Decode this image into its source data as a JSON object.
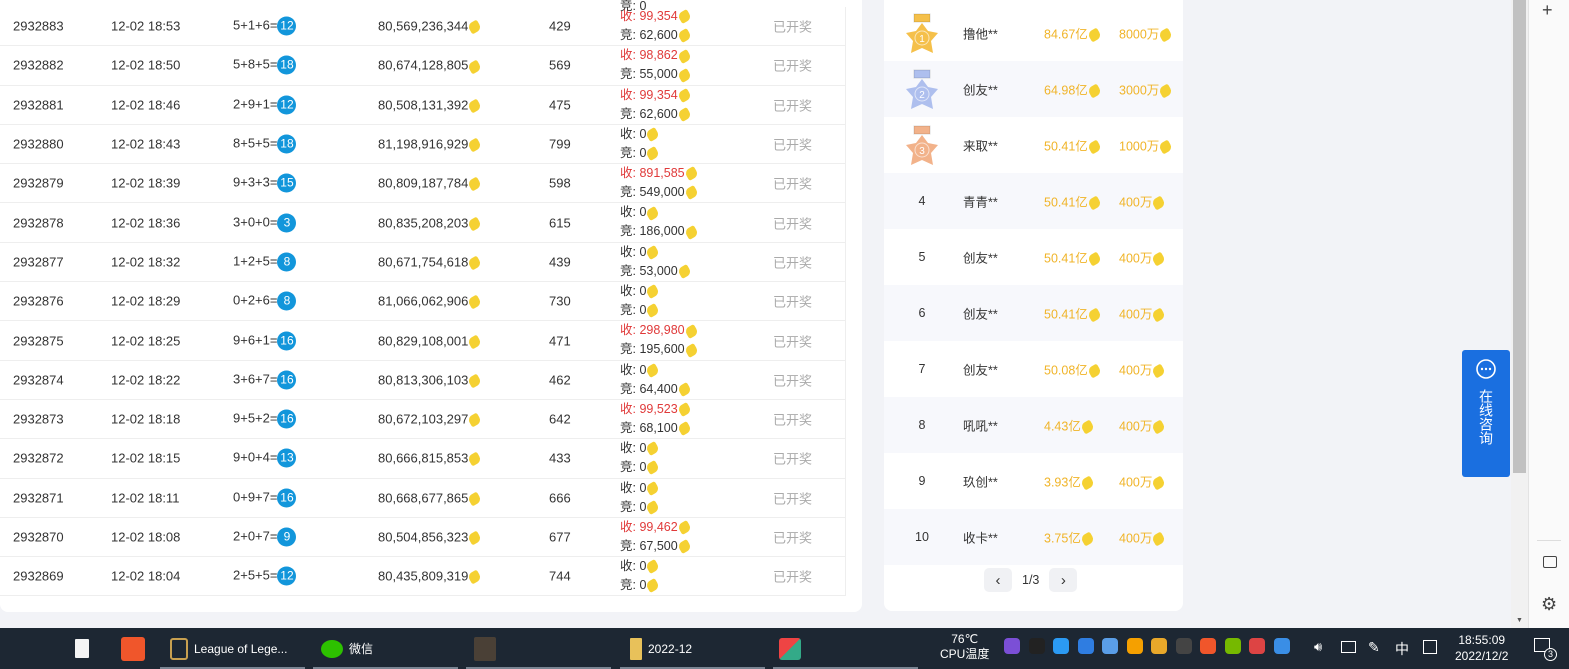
{
  "table": {
    "top_partial": "竞: 0",
    "status_label": "已开奖",
    "recv_prefix": "收: ",
    "bid_prefix": "竞: ",
    "rows": [
      {
        "id": "2932883",
        "time": "12-02 18:53",
        "formula": "5+1+6=",
        "result": "12",
        "total": "80,569,236,344",
        "count": "429",
        "recv": "99,354",
        "bid": "62,600"
      },
      {
        "id": "2932882",
        "time": "12-02 18:50",
        "formula": "5+8+5=",
        "result": "18",
        "total": "80,674,128,805",
        "count": "569",
        "recv": "98,862",
        "bid": "55,000"
      },
      {
        "id": "2932881",
        "time": "12-02 18:46",
        "formula": "2+9+1=",
        "result": "12",
        "total": "80,508,131,392",
        "count": "475",
        "recv": "99,354",
        "bid": "62,600"
      },
      {
        "id": "2932880",
        "time": "12-02 18:43",
        "formula": "8+5+5=",
        "result": "18",
        "total": "81,198,916,929",
        "count": "799",
        "recv": "0",
        "bid": "0"
      },
      {
        "id": "2932879",
        "time": "12-02 18:39",
        "formula": "9+3+3=",
        "result": "15",
        "total": "80,809,187,784",
        "count": "598",
        "recv": "891,585",
        "bid": "549,000"
      },
      {
        "id": "2932878",
        "time": "12-02 18:36",
        "formula": "3+0+0=",
        "result": "3",
        "total": "80,835,208,203",
        "count": "615",
        "recv": "0",
        "bid": "186,000"
      },
      {
        "id": "2932877",
        "time": "12-02 18:32",
        "formula": "1+2+5=",
        "result": "8",
        "total": "80,671,754,618",
        "count": "439",
        "recv": "0",
        "bid": "53,000"
      },
      {
        "id": "2932876",
        "time": "12-02 18:29",
        "formula": "0+2+6=",
        "result": "8",
        "total": "81,066,062,906",
        "count": "730",
        "recv": "0",
        "bid": "0"
      },
      {
        "id": "2932875",
        "time": "12-02 18:25",
        "formula": "9+6+1=",
        "result": "16",
        "total": "80,829,108,001",
        "count": "471",
        "recv": "298,980",
        "bid": "195,600"
      },
      {
        "id": "2932874",
        "time": "12-02 18:22",
        "formula": "3+6+7=",
        "result": "16",
        "total": "80,813,306,103",
        "count": "462",
        "recv": "0",
        "bid": "64,400"
      },
      {
        "id": "2932873",
        "time": "12-02 18:18",
        "formula": "9+5+2=",
        "result": "16",
        "total": "80,672,103,297",
        "count": "642",
        "recv": "99,523",
        "bid": "68,100"
      },
      {
        "id": "2932872",
        "time": "12-02 18:15",
        "formula": "9+0+4=",
        "result": "13",
        "total": "80,666,815,853",
        "count": "433",
        "recv": "0",
        "bid": "0"
      },
      {
        "id": "2932871",
        "time": "12-02 18:11",
        "formula": "0+9+7=",
        "result": "16",
        "total": "80,668,677,865",
        "count": "666",
        "recv": "0",
        "bid": "0"
      },
      {
        "id": "2932870",
        "time": "12-02 18:08",
        "formula": "2+0+7=",
        "result": "9",
        "total": "80,504,856,323",
        "count": "677",
        "recv": "99,462",
        "bid": "67,500"
      },
      {
        "id": "2932869",
        "time": "12-02 18:04",
        "formula": "2+5+5=",
        "result": "12",
        "total": "80,435,809,319",
        "count": "744",
        "recv": "0",
        "bid": "0"
      }
    ]
  },
  "ranking": {
    "rows": [
      {
        "rank": "1",
        "name": "撸他**",
        "amount": "84.67亿",
        "prize": "8000万"
      },
      {
        "rank": "2",
        "name": "创友**",
        "amount": "64.98亿",
        "prize": "3000万"
      },
      {
        "rank": "3",
        "name": "来取**",
        "amount": "50.41亿",
        "prize": "1000万"
      },
      {
        "rank": "4",
        "name": "青青**",
        "amount": "50.41亿",
        "prize": "400万"
      },
      {
        "rank": "5",
        "name": "创友**",
        "amount": "50.41亿",
        "prize": "400万"
      },
      {
        "rank": "6",
        "name": "创友**",
        "amount": "50.41亿",
        "prize": "400万"
      },
      {
        "rank": "7",
        "name": "创友**",
        "amount": "50.08亿",
        "prize": "400万"
      },
      {
        "rank": "8",
        "name": "吼吼**",
        "amount": "4.43亿",
        "prize": "400万"
      },
      {
        "rank": "9",
        "name": "玖创**",
        "amount": "3.93亿",
        "prize": "400万"
      },
      {
        "rank": "10",
        "name": "收卡**",
        "amount": "3.75亿",
        "prize": "400万"
      }
    ],
    "page": "1/3",
    "medal_colors": [
      "#f5c04a",
      "#aebfee",
      "#f2b28a"
    ]
  },
  "consult": {
    "label": "在线咨询"
  },
  "taskbar": {
    "apps": [
      "League of Lege...",
      "微信",
      "2022-12"
    ],
    "temp": "76℃",
    "temp_label": "CPU温度",
    "ime": "中",
    "time": "18:55:09",
    "date": "2022/12/2",
    "notif_count": "3"
  },
  "colors": {
    "accent": "#1296db",
    "red": "#e03a3a",
    "gold": "#f0b429",
    "consult": "#1a6fe0"
  }
}
